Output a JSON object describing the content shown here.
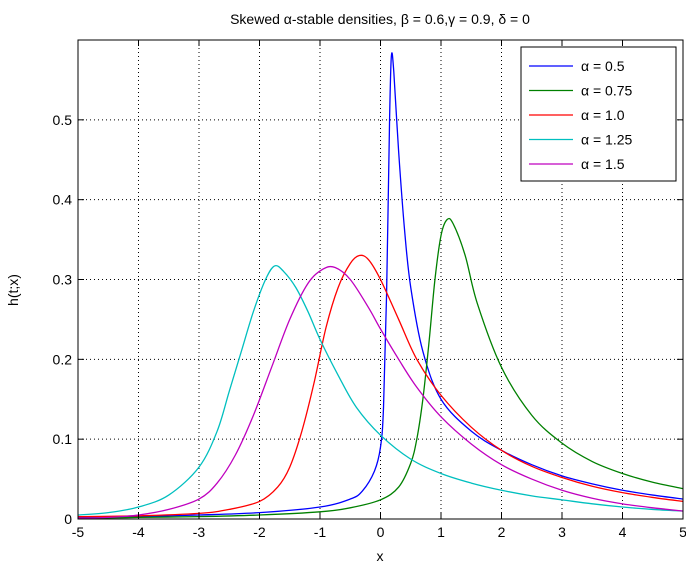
{
  "chart_data": {
    "type": "line",
    "title": "Skewed α-stable densities, β = 0.6,γ = 0.9, δ = 0",
    "xlabel": "x",
    "ylabel": "h(t;x)",
    "xlim": [
      -5,
      5
    ],
    "ylim": [
      0,
      0.6
    ],
    "xticks": [
      -5,
      -4,
      -3,
      -2,
      -1,
      0,
      1,
      2,
      3,
      4,
      5
    ],
    "yticks": [
      0,
      0.1,
      0.2,
      0.3,
      0.4,
      0.5
    ],
    "xtick_labels": [
      "-5",
      "-4",
      "-3",
      "-2",
      "-1",
      "0",
      "1",
      "2",
      "3",
      "4",
      "5"
    ],
    "ytick_labels": [
      "0",
      "0.1",
      "0.2",
      "0.3",
      "0.4",
      "0.5"
    ],
    "grid": true,
    "legend_position": "top-right",
    "series": [
      {
        "name": "α = 0.5",
        "color": "#0000ff",
        "points": [
          [
            -5,
            0.002
          ],
          [
            -4,
            0.003
          ],
          [
            -3,
            0.005
          ],
          [
            -2,
            0.008
          ],
          [
            -1,
            0.015
          ],
          [
            -0.5,
            0.025
          ],
          [
            -0.3,
            0.035
          ],
          [
            -0.1,
            0.06
          ],
          [
            0,
            0.09
          ],
          [
            0.05,
            0.14
          ],
          [
            0.1,
            0.28
          ],
          [
            0.15,
            0.5
          ],
          [
            0.18,
            0.58
          ],
          [
            0.22,
            0.56
          ],
          [
            0.3,
            0.46
          ],
          [
            0.4,
            0.36
          ],
          [
            0.5,
            0.29
          ],
          [
            0.7,
            0.21
          ],
          [
            1.0,
            0.15
          ],
          [
            1.5,
            0.11
          ],
          [
            2,
            0.086
          ],
          [
            2.5,
            0.068
          ],
          [
            3,
            0.054
          ],
          [
            3.5,
            0.044
          ],
          [
            4,
            0.036
          ],
          [
            4.5,
            0.03
          ],
          [
            5,
            0.025
          ]
        ]
      },
      {
        "name": "α = 0.75",
        "color": "#008000",
        "points": [
          [
            -5,
            0.001
          ],
          [
            -4,
            0.002
          ],
          [
            -3,
            0.003
          ],
          [
            -2,
            0.005
          ],
          [
            -1,
            0.009
          ],
          [
            -0.5,
            0.014
          ],
          [
            0,
            0.024
          ],
          [
            0.3,
            0.04
          ],
          [
            0.5,
            0.07
          ],
          [
            0.6,
            0.1
          ],
          [
            0.7,
            0.15
          ],
          [
            0.8,
            0.22
          ],
          [
            0.9,
            0.3
          ],
          [
            1.0,
            0.355
          ],
          [
            1.1,
            0.375
          ],
          [
            1.2,
            0.37
          ],
          [
            1.4,
            0.33
          ],
          [
            1.6,
            0.27
          ],
          [
            2,
            0.19
          ],
          [
            2.5,
            0.13
          ],
          [
            3,
            0.095
          ],
          [
            3.5,
            0.072
          ],
          [
            4,
            0.057
          ],
          [
            4.5,
            0.046
          ],
          [
            5,
            0.038
          ]
        ]
      },
      {
        "name": "α = 1.0",
        "color": "#ff0000",
        "points": [
          [
            -5,
            0.003
          ],
          [
            -4,
            0.004
          ],
          [
            -3,
            0.007
          ],
          [
            -2.5,
            0.012
          ],
          [
            -2,
            0.022
          ],
          [
            -1.7,
            0.04
          ],
          [
            -1.5,
            0.065
          ],
          [
            -1.3,
            0.11
          ],
          [
            -1.1,
            0.17
          ],
          [
            -0.9,
            0.24
          ],
          [
            -0.7,
            0.29
          ],
          [
            -0.5,
            0.32
          ],
          [
            -0.35,
            0.33
          ],
          [
            -0.2,
            0.325
          ],
          [
            0,
            0.3
          ],
          [
            0.3,
            0.25
          ],
          [
            0.6,
            0.2
          ],
          [
            1,
            0.155
          ],
          [
            1.5,
            0.115
          ],
          [
            2,
            0.086
          ],
          [
            2.5,
            0.066
          ],
          [
            3,
            0.052
          ],
          [
            3.5,
            0.041
          ],
          [
            4,
            0.033
          ],
          [
            4.5,
            0.027
          ],
          [
            5,
            0.022
          ]
        ]
      },
      {
        "name": "α = 1.25",
        "color": "#00bfbf",
        "points": [
          [
            -5,
            0.005
          ],
          [
            -4.5,
            0.008
          ],
          [
            -4,
            0.015
          ],
          [
            -3.5,
            0.03
          ],
          [
            -3,
            0.065
          ],
          [
            -2.7,
            0.11
          ],
          [
            -2.5,
            0.16
          ],
          [
            -2.3,
            0.21
          ],
          [
            -2.1,
            0.26
          ],
          [
            -1.9,
            0.3
          ],
          [
            -1.75,
            0.317
          ],
          [
            -1.6,
            0.31
          ],
          [
            -1.4,
            0.29
          ],
          [
            -1.2,
            0.26
          ],
          [
            -1,
            0.225
          ],
          [
            -0.7,
            0.18
          ],
          [
            -0.4,
            0.14
          ],
          [
            0,
            0.105
          ],
          [
            0.5,
            0.075
          ],
          [
            1,
            0.057
          ],
          [
            1.5,
            0.045
          ],
          [
            2,
            0.036
          ],
          [
            2.5,
            0.029
          ],
          [
            3,
            0.024
          ],
          [
            3.5,
            0.019
          ],
          [
            4,
            0.015
          ],
          [
            4.5,
            0.012
          ],
          [
            5,
            0.01
          ]
        ]
      },
      {
        "name": "α = 1.5",
        "color": "#bf00bf",
        "points": [
          [
            -5,
            0.001
          ],
          [
            -4.5,
            0.002
          ],
          [
            -4,
            0.005
          ],
          [
            -3.5,
            0.012
          ],
          [
            -3,
            0.025
          ],
          [
            -2.7,
            0.045
          ],
          [
            -2.4,
            0.08
          ],
          [
            -2.1,
            0.13
          ],
          [
            -1.8,
            0.19
          ],
          [
            -1.5,
            0.25
          ],
          [
            -1.2,
            0.295
          ],
          [
            -0.95,
            0.313
          ],
          [
            -0.75,
            0.315
          ],
          [
            -0.5,
            0.3
          ],
          [
            -0.2,
            0.265
          ],
          [
            0,
            0.238
          ],
          [
            0.3,
            0.2
          ],
          [
            0.6,
            0.165
          ],
          [
            1,
            0.128
          ],
          [
            1.5,
            0.094
          ],
          [
            2,
            0.068
          ],
          [
            2.5,
            0.05
          ],
          [
            3,
            0.036
          ],
          [
            3.5,
            0.026
          ],
          [
            4,
            0.019
          ],
          [
            4.5,
            0.014
          ],
          [
            5,
            0.01
          ]
        ]
      }
    ]
  }
}
